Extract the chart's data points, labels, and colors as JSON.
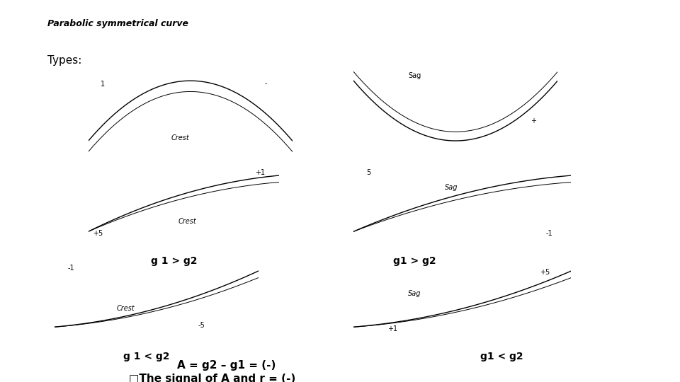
{
  "title": "Parabolic symmetrical curve",
  "subtitle": "Types:",
  "bg_color": "#ffffff",
  "text_color": "#000000",
  "bottom_text1": "A = g2 – g1 = (-)",
  "bottom_text2": "□The signal of A and r = (-)",
  "diagrams": {
    "top_left": {
      "lbl_left": "1",
      "lbl_right": "-",
      "lbl_center": "Crest",
      "lbl_grade": null
    },
    "top_right": {
      "lbl_left": "Sag",
      "lbl_right": "+",
      "lbl_center": null,
      "lbl_grade": null
    },
    "mid_left": {
      "lbl_left": "+5",
      "lbl_right": "+1",
      "lbl_center": "Crest",
      "lbl_grade": "g 1 > g2"
    },
    "mid_right": {
      "lbl_left": "5",
      "lbl_right": "-1",
      "lbl_center": "Sag",
      "lbl_grade": "g1 > g2"
    },
    "bot_left": {
      "lbl_left": "-1",
      "lbl_right": "-5",
      "lbl_center": "Crest",
      "lbl_grade": "g 1 < g2"
    },
    "bot_right": {
      "lbl_left": "+1",
      "lbl_right": "+5",
      "lbl_center": "Sag",
      "lbl_grade": "g1 < g2"
    }
  }
}
